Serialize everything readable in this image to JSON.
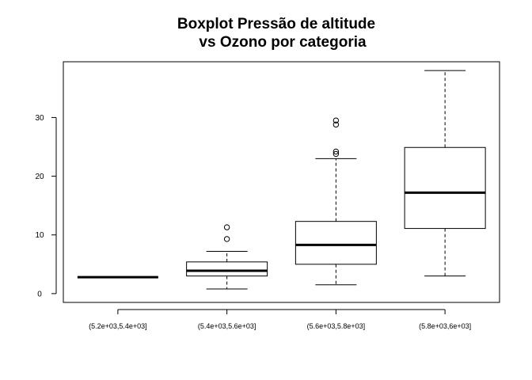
{
  "chart_data": {
    "type": "boxplot",
    "title_lines": [
      "Boxplot Pressão de altitude",
      "vs Ozono por categoria"
    ],
    "xlabel": "",
    "ylabel": "",
    "ylim": [
      -1.5,
      39.5
    ],
    "yticks": [
      0,
      10,
      20,
      30
    ],
    "grid": false,
    "categories": [
      "(5.2e+03,5.4e+03]",
      "(5.4e+03,5.6e+03]",
      "(5.6e+03,5.8e+03]",
      "(5.8e+03,6e+03]"
    ],
    "boxes": [
      {
        "whisker_low": 2.8,
        "q1": 2.8,
        "median": 2.8,
        "q3": 2.8,
        "whisker_high": 2.8,
        "outliers": []
      },
      {
        "whisker_low": 0.8,
        "q1": 3.0,
        "median": 3.9,
        "q3": 5.4,
        "whisker_high": 7.2,
        "outliers": [
          9.3,
          11.3
        ]
      },
      {
        "whisker_low": 1.5,
        "q1": 5.0,
        "median": 8.3,
        "q3": 12.3,
        "whisker_high": 23.0,
        "outliers": [
          23.8,
          24.2,
          28.8,
          29.5
        ]
      },
      {
        "whisker_low": 3.0,
        "q1": 11.1,
        "median": 17.2,
        "q3": 24.9,
        "whisker_high": 38.0,
        "outliers": []
      }
    ],
    "colors": {
      "box": "#ffffff",
      "stroke": "#000000"
    }
  }
}
